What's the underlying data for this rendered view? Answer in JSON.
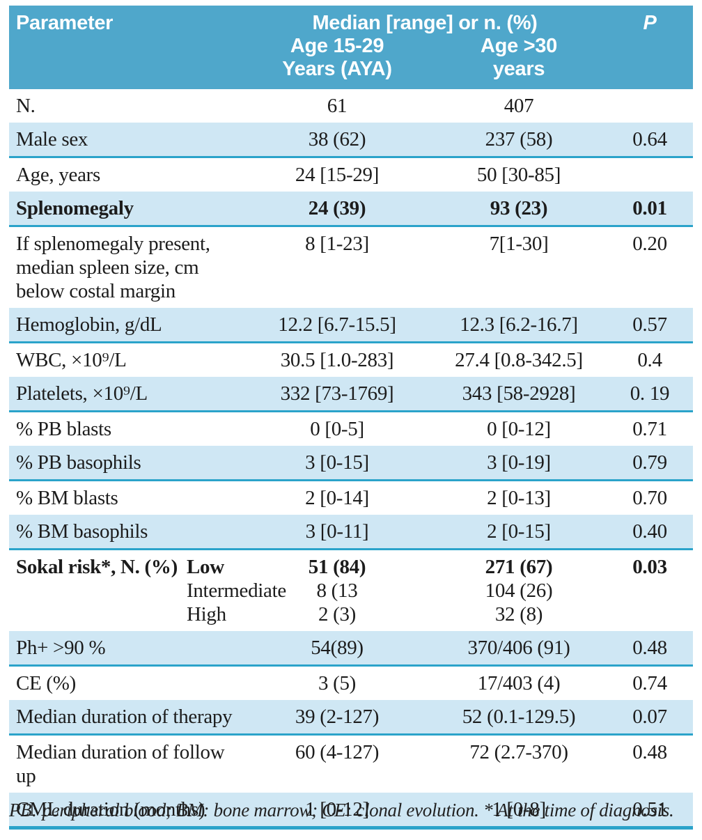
{
  "header": {
    "col_parameter": "Parameter",
    "col_values": "Median [range] or n. (%)",
    "col_p": "P",
    "group_aya_line1": "Age 15-29",
    "group_aya_line2": "Years (AYA)",
    "group_older_line1": "Age >30",
    "group_older_line2": "years"
  },
  "rows": [
    {
      "param": "N.",
      "v1": "61",
      "v2": "407",
      "p": ""
    },
    {
      "param": "Male sex",
      "v1": "38 (62)",
      "v2": "237 (58)",
      "p": "0.64"
    },
    {
      "param": "Age, years",
      "v1": "24 [15-29]",
      "v2": "50 [30-85]",
      "p": ""
    },
    {
      "param": "Splenomegaly",
      "v1": "24 (39)",
      "v2": "93 (23)",
      "p": "0.01"
    },
    {
      "param": "If splenomegaly present,\nmedian spleen size, cm\nbelow costal margin",
      "v1": "8 [1-23]",
      "v2": "7[1-30]",
      "p": "0.20"
    },
    {
      "param": "Hemoglobin, g/dL",
      "v1": "12.2 [6.7-15.5]",
      "v2": "12.3 [6.2-16.7]",
      "p": "0.57"
    },
    {
      "param": "WBC, ×10⁹/L",
      "v1": "30.5 [1.0-283]",
      "v2": "27.4 [0.8-342.5]",
      "p": "0.4"
    },
    {
      "param": "Platelets, ×10⁹/L",
      "v1": "332 [73-1769]",
      "v2": "343 [58-2928]",
      "p": "0. 19"
    },
    {
      "param": "% PB blasts",
      "v1": "0 [0-5]",
      "v2": "0 [0-12]",
      "p": "0.71"
    },
    {
      "param": "% PB basophils",
      "v1": "3 [0-15]",
      "v2": "3 [0-19]",
      "p": "0.79"
    },
    {
      "param": "% BM blasts",
      "v1": "2 [0-14]",
      "v2": "2 [0-13]",
      "p": "0.70"
    },
    {
      "param": "% BM basophils",
      "v1": "3 [0-11]",
      "v2": "2 [0-15]",
      "p": "0.40"
    },
    {
      "param": "Ph+ >90 %",
      "v1": "54(89)",
      "v2": "370/406 (91)",
      "p": "0.48"
    },
    {
      "param": "CE (%)",
      "v1": "3 (5)",
      "v2": "17/403 (4)",
      "p": "0.74"
    },
    {
      "param": "Median duration of therapy",
      "v1": "39 (2-127)",
      "v2": "52 (0.1-129.5)",
      "p": "0.07"
    },
    {
      "param": "Median duration of follow up",
      "v1": "60 (4-127)",
      "v2": "72 (2.7-370)",
      "p": "0.48"
    },
    {
      "param": "CML duration (months)",
      "v1": "1 [0-12]",
      "v2": "1 [0-8]",
      "p": "0.51"
    }
  ],
  "sokal": {
    "title": "Sokal risk*, N. (%)",
    "p": "0.03",
    "levels": [
      {
        "label": "Low",
        "v1": "51 (84)",
        "v2": "271 (67)"
      },
      {
        "label": "Intermediate",
        "v1": "8 (13",
        "v2": "104 (26)"
      },
      {
        "label": "High",
        "v1": "2 (3)",
        "v2": "32 (8)"
      }
    ]
  },
  "footnote": "PB: peripheral blood; BM: bone marrow; CE: clonal evolution. * At the time of diagnosis."
}
